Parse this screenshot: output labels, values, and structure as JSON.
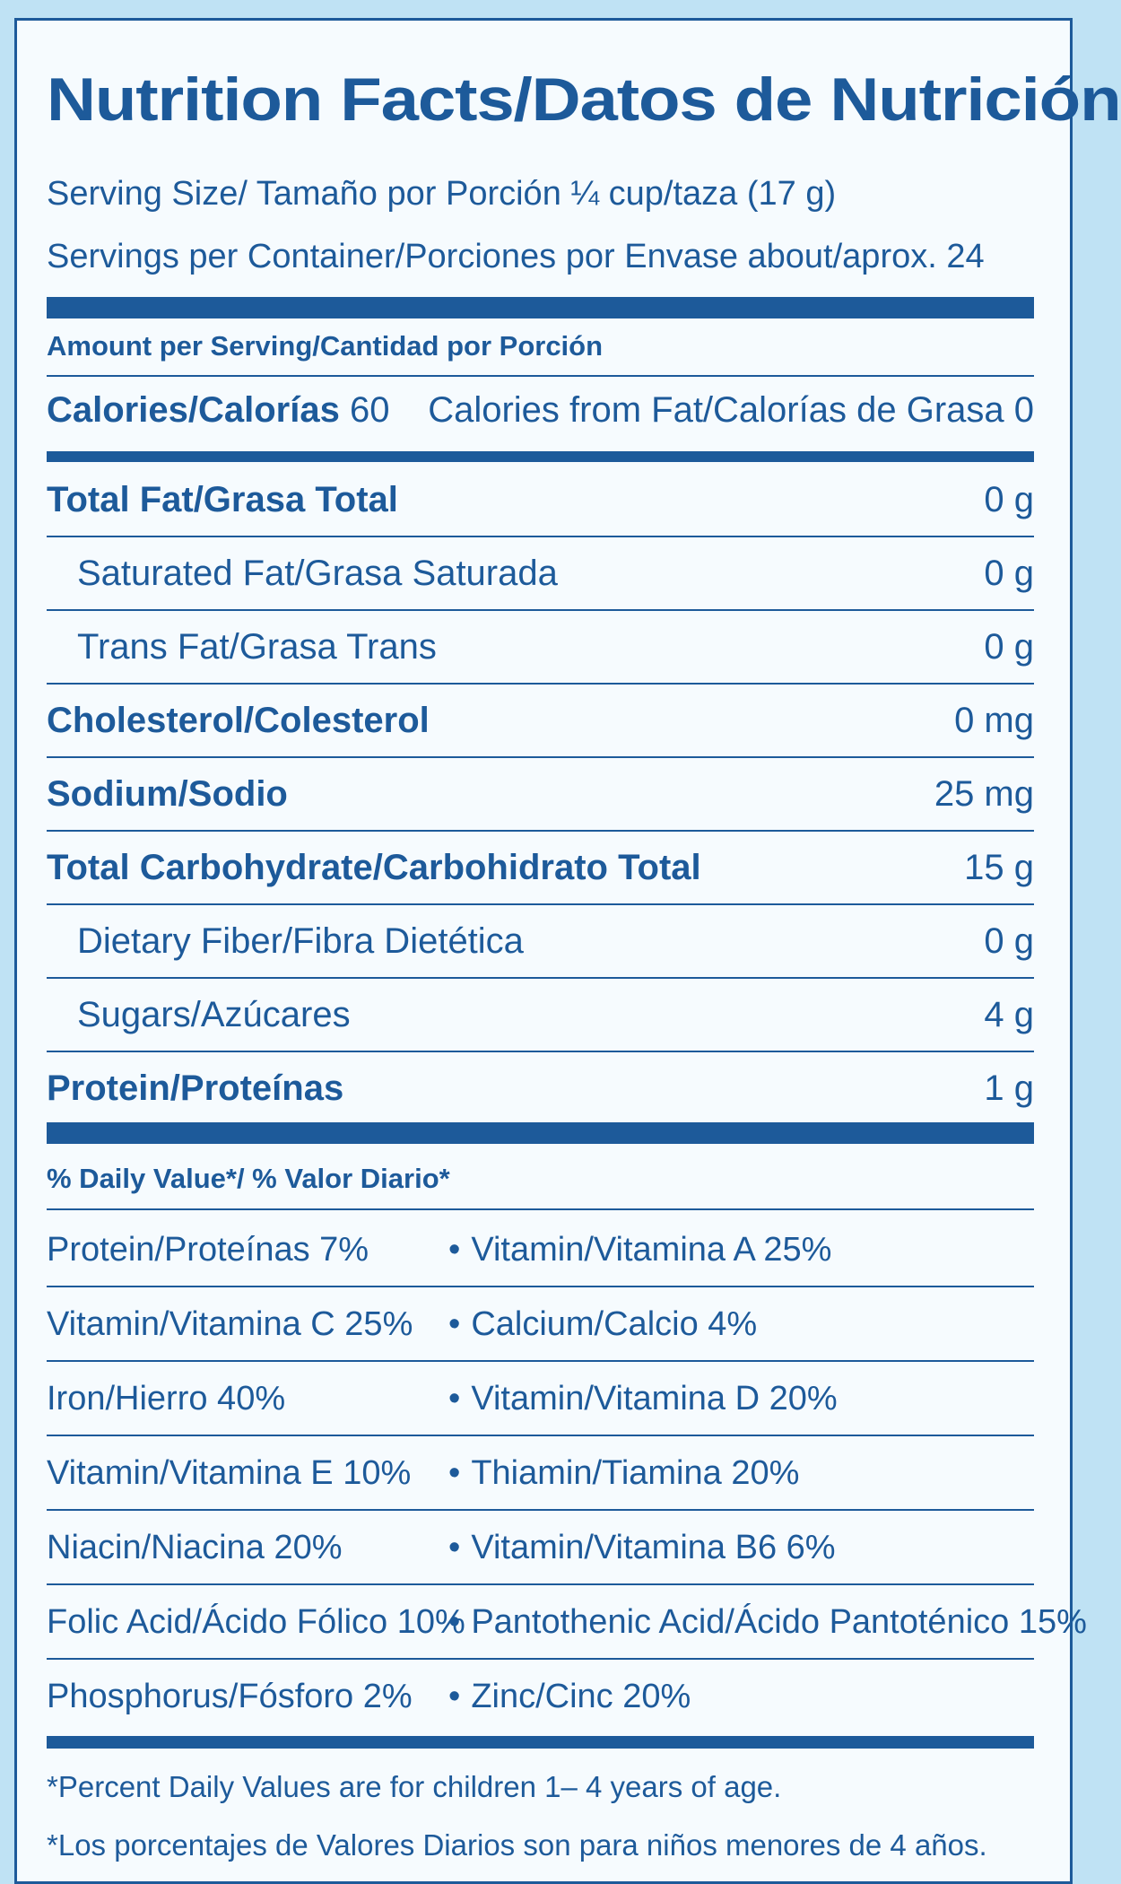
{
  "title": "Nutrition Facts/Datos de Nutrición",
  "serving_size": "Serving Size/ Tamaño por Porción ¼ cup/taza (17 g)",
  "servings_per_container": "Servings per Container/Porciones por Envase about/aprox. 24",
  "amount_per_serving": "Amount per Serving/Cantidad por Porción",
  "calories": {
    "label": "Calories/Calorías",
    "value": "60",
    "from_fat": "Calories from Fat/Calorías de Grasa 0"
  },
  "nutrients": [
    {
      "name": "Total Fat/Grasa Total",
      "value": "0 g",
      "bold": true,
      "indent": false
    },
    {
      "name": "Saturated Fat/Grasa Saturada",
      "value": "0 g",
      "bold": false,
      "indent": true
    },
    {
      "name": "Trans Fat/Grasa Trans",
      "value": "0 g",
      "bold": false,
      "indent": true
    },
    {
      "name": "Cholesterol/Colesterol",
      "value": "0 mg",
      "bold": true,
      "indent": false
    },
    {
      "name": "Sodium/Sodio",
      "value": "25 mg",
      "bold": true,
      "indent": false
    },
    {
      "name": "Total Carbohydrate/Carbohidrato Total",
      "value": "15 g",
      "bold": true,
      "indent": false
    },
    {
      "name": "Dietary Fiber/Fibra Dietética",
      "value": "0 g",
      "bold": false,
      "indent": true
    },
    {
      "name": "Sugars/Azúcares",
      "value": "4 g",
      "bold": false,
      "indent": true
    },
    {
      "name": "Protein/Proteínas",
      "value": "1 g",
      "bold": true,
      "indent": false
    }
  ],
  "daily_value_header": "% Daily Value*/ % Valor Diario*",
  "daily_values": [
    {
      "left": "Protein/Proteínas 7%",
      "right": "Vitamin/Vitamina A 25%"
    },
    {
      "left": "Vitamin/Vitamina C 25%",
      "right": "Calcium/Calcio 4%"
    },
    {
      "left": "Iron/Hierro 40%",
      "right": "Vitamin/Vitamina D 20%"
    },
    {
      "left": "Vitamin/Vitamina E 10%",
      "right": "Thiamin/Tiamina 20%"
    },
    {
      "left": "Niacin/Niacina 20%",
      "right": "Vitamin/Vitamina B6 6%"
    },
    {
      "left": "Folic Acid/Ácido Fólico 10%",
      "right": "Pantothenic Acid/Ácido Pantoténico 15%"
    },
    {
      "left": "Phosphorus/Fósforo 2%",
      "right": "Zinc/Cinc 20%"
    }
  ],
  "bullet": "•",
  "footnotes": [
    "*Percent Daily Values are for children 1– 4 years of age.",
    "*Los porcentajes de Valores Diarios son para niños menores de 4 años."
  ],
  "colors": {
    "ink": "#1d5a9a",
    "panel": "#f6fbfe",
    "background": "#bfe2f4"
  }
}
